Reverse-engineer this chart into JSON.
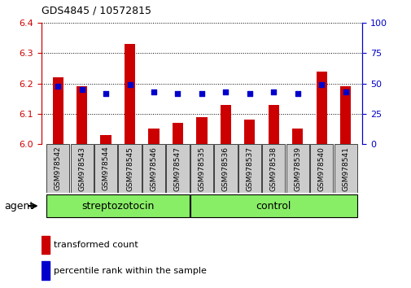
{
  "title": "GDS4845 / 10572815",
  "samples": [
    "GSM978542",
    "GSM978543",
    "GSM978544",
    "GSM978545",
    "GSM978546",
    "GSM978547",
    "GSM978535",
    "GSM978536",
    "GSM978537",
    "GSM978538",
    "GSM978539",
    "GSM978540",
    "GSM978541"
  ],
  "red_values": [
    6.22,
    6.19,
    6.03,
    6.33,
    6.05,
    6.07,
    6.09,
    6.13,
    6.08,
    6.13,
    6.05,
    6.24,
    6.19
  ],
  "blue_percentile": [
    48,
    45,
    42,
    49,
    43,
    42,
    42,
    43,
    42,
    43,
    42,
    49,
    43
  ],
  "group_labels": [
    "streptozotocin",
    "control"
  ],
  "group_counts": [
    6,
    7
  ],
  "ylim_left": [
    6.0,
    6.4
  ],
  "ylim_right": [
    0,
    100
  ],
  "yticks_left": [
    6.0,
    6.1,
    6.2,
    6.3,
    6.4
  ],
  "yticks_right": [
    0,
    25,
    50,
    75,
    100
  ],
  "red_color": "#cc0000",
  "blue_color": "#0000cc",
  "bar_width": 0.45,
  "group_bg": "#88ee66",
  "agent_label": "agent",
  "legend_red": "transformed count",
  "legend_blue": "percentile rank within the sample",
  "tick_bg": "#cccccc"
}
